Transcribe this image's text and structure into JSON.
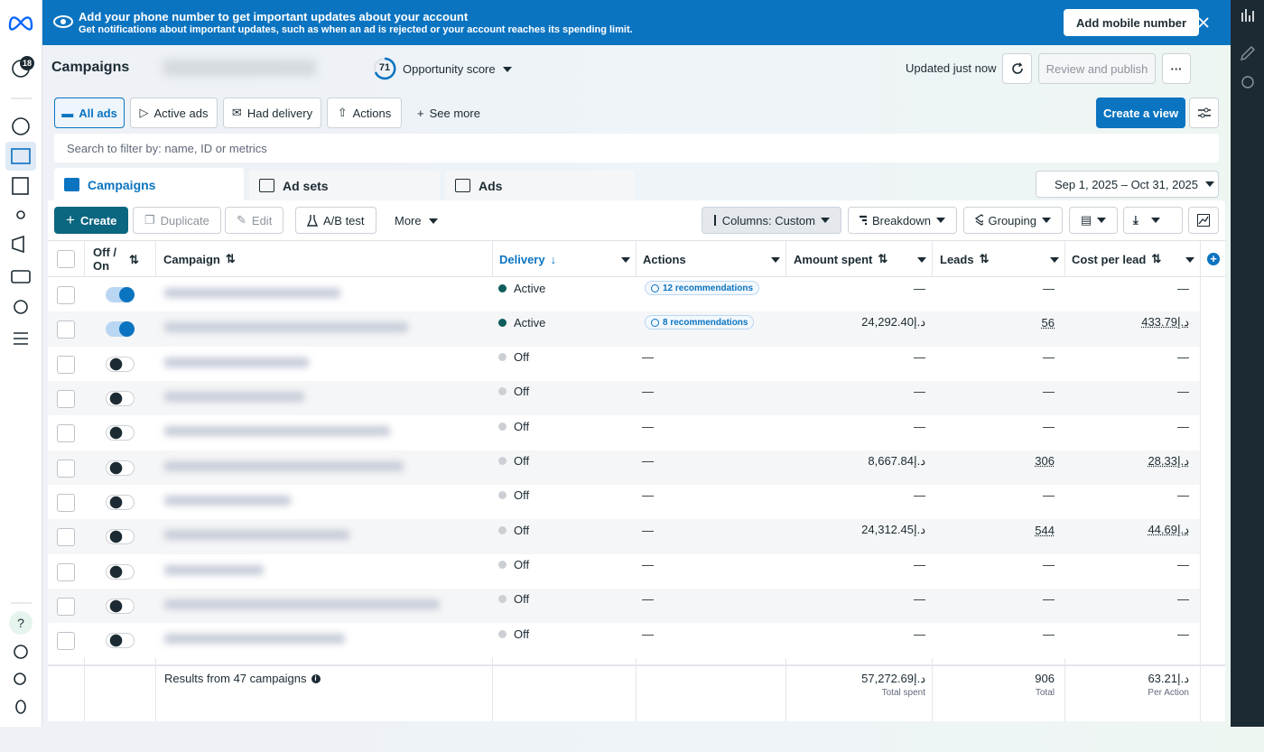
{
  "banner": {
    "title": "Add your phone number to get important updates about your account",
    "subtitle": "Get notifications about important updates, such as when an ad is rejected or your account reaches its spending limit.",
    "button": "Add mobile number"
  },
  "sidebar": {
    "badge": "18",
    "help": "?"
  },
  "header": {
    "title": "Campaigns",
    "score": "71",
    "score_label": "Opportunity score",
    "status": "Updated just now",
    "publish": "Review and publish",
    "more": "···"
  },
  "filters": [
    "All ads",
    "Active ads",
    "Had delivery",
    "Actions",
    "See more"
  ],
  "create_view": "Create a view",
  "search_placeholder": "Search to filter by: name, ID or metrics",
  "tabs": [
    "Campaigns",
    "Ad sets",
    "Ads"
  ],
  "date_range": "Sep 1, 2025 – Oct 31, 2025",
  "toolbar": {
    "create": "Create",
    "duplicate": "Duplicate",
    "edit": "Edit",
    "ab_test": "A/B test",
    "more": "More",
    "columns": "Columns: Custom",
    "breakdown": "Breakdown",
    "grouping": "Grouping"
  },
  "table": {
    "columns": [
      "Off / On",
      "Campaign",
      "Delivery",
      "Actions",
      "Amount spent",
      "Leads",
      "Cost per lead"
    ],
    "rows": [
      {
        "on": true,
        "delivery": "Active",
        "actions": "12 recommendations",
        "amount": "—",
        "leads": "—",
        "cpl": "—"
      },
      {
        "on": true,
        "delivery": "Active",
        "actions": "8 recommendations",
        "amount": "24,292.40د.إ",
        "leads": "56",
        "cpl": "433.79د.إ"
      },
      {
        "on": false,
        "delivery": "Off",
        "actions": "—",
        "amount": "—",
        "leads": "—",
        "cpl": "—"
      },
      {
        "on": false,
        "delivery": "Off",
        "actions": "—",
        "amount": "—",
        "leads": "—",
        "cpl": "—"
      },
      {
        "on": false,
        "delivery": "Off",
        "actions": "—",
        "amount": "—",
        "leads": "—",
        "cpl": "—"
      },
      {
        "on": false,
        "delivery": "Off",
        "actions": "—",
        "amount": "8,667.84د.إ",
        "leads": "306",
        "cpl": "28.33د.إ"
      },
      {
        "on": false,
        "delivery": "Off",
        "actions": "—",
        "amount": "—",
        "leads": "—",
        "cpl": "—"
      },
      {
        "on": false,
        "delivery": "Off",
        "actions": "—",
        "amount": "24,312.45د.إ",
        "leads": "544",
        "cpl": "44.69د.إ"
      },
      {
        "on": false,
        "delivery": "Off",
        "actions": "—",
        "amount": "—",
        "leads": "—",
        "cpl": "—"
      },
      {
        "on": false,
        "delivery": "Off",
        "actions": "—",
        "amount": "—",
        "leads": "—",
        "cpl": "—"
      },
      {
        "on": false,
        "delivery": "Off",
        "actions": "—",
        "amount": "—",
        "leads": "—",
        "cpl": "—"
      }
    ],
    "footer": {
      "results": "Results from 47 campaigns",
      "amount": "57,272.69د.إ",
      "amount_note": "Total spent",
      "leads": "906",
      "leads_note": "Total",
      "cpl": "63.21د.إ",
      "cpl_note": "Per Action"
    }
  }
}
